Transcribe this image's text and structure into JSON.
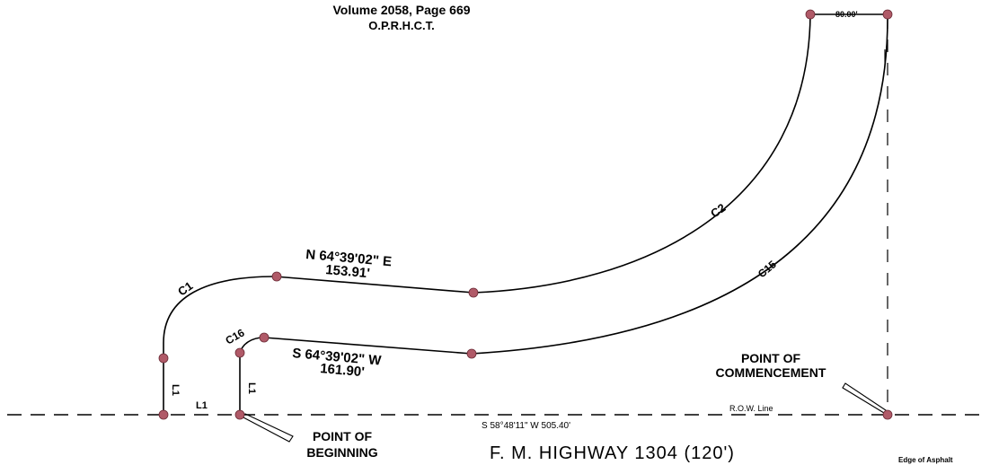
{
  "header": {
    "volume_line": "Volume 2058, Page 669",
    "records_line": "O.P.R.H.C.T."
  },
  "curves": {
    "c1": "C1",
    "c2": "C2",
    "c15": "C15",
    "c16": "C16"
  },
  "lines": {
    "l1_lower": "L1",
    "l1_left_vertical": "L1",
    "l1_right_vertical": "L1"
  },
  "north_course": {
    "bearing": "N 64°39'02\" E",
    "distance": "153.91'"
  },
  "south_course": {
    "bearing": "S 64°39'02\" W",
    "distance": "161.90'"
  },
  "top_dimension": "80.00'",
  "baseline_bearing": "S 58°48'11\" W  505.40'",
  "row_line_label": "R.O.W. Line",
  "point_of_commencement": [
    "POINT OF",
    "COMMENCEMENT"
  ],
  "point_of_beginning": [
    "POINT OF",
    "BEGINNING"
  ],
  "highway": "F. M. HIGHWAY 1304 (120')",
  "asphalt_label": "Edge of Asphalt",
  "colors": {
    "line": "#000000",
    "point_fill": "#b05a68",
    "background": "#ffffff"
  }
}
